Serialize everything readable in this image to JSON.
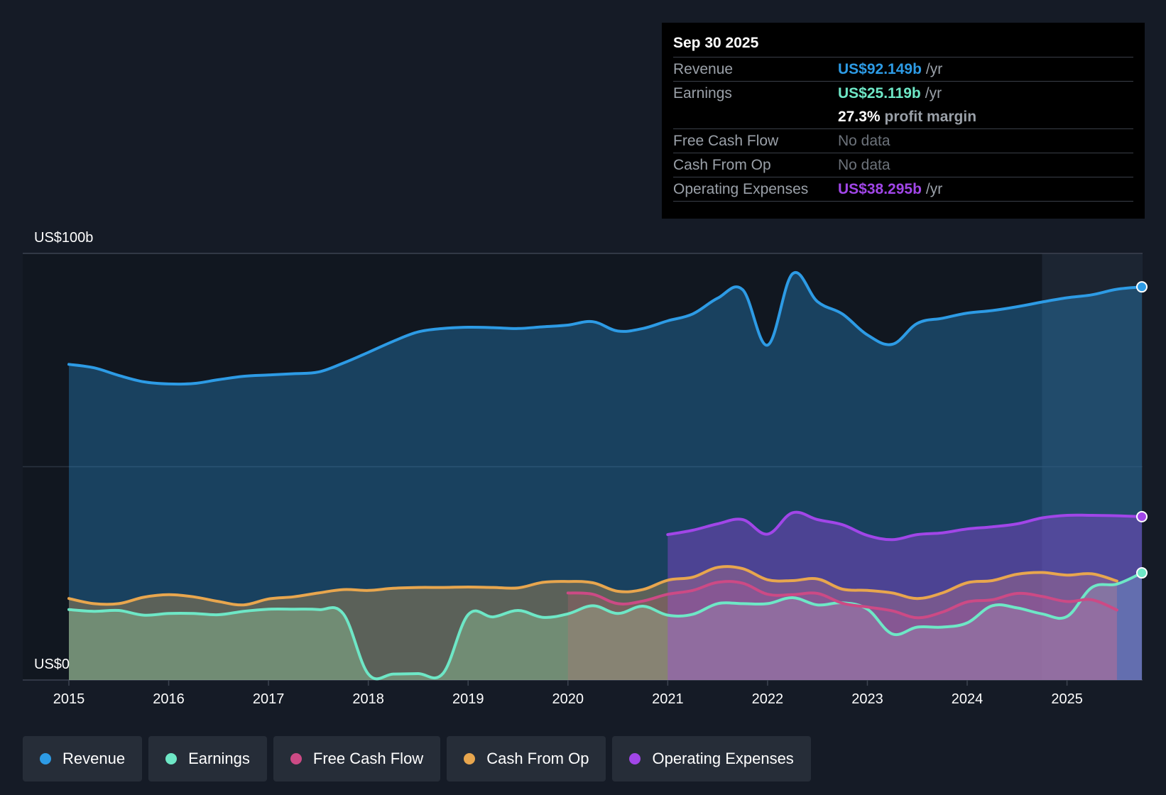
{
  "chart_data": {
    "type": "line",
    "y_axis": {
      "min": 0,
      "max": 100,
      "top_label": "US$100b",
      "bottom_label": "US$0",
      "unit": "US$ billions"
    },
    "x_axis": {
      "min": 2015.0,
      "max": 2025.75,
      "tick_labels": [
        "2015",
        "2016",
        "2017",
        "2018",
        "2019",
        "2020",
        "2021",
        "2022",
        "2023",
        "2024",
        "2025"
      ]
    },
    "highlight_start": 2024.75,
    "series": [
      {
        "name": "Revenue",
        "color": "#2d9be5",
        "end_marker": true,
        "points": [
          [
            2015.0,
            74.0
          ],
          [
            2015.25,
            73.2
          ],
          [
            2015.5,
            71.4
          ],
          [
            2015.75,
            69.9
          ],
          [
            2016.0,
            69.4
          ],
          [
            2016.25,
            69.5
          ],
          [
            2016.5,
            70.4
          ],
          [
            2016.75,
            71.2
          ],
          [
            2017.0,
            71.5
          ],
          [
            2017.25,
            71.8
          ],
          [
            2017.5,
            72.2
          ],
          [
            2017.75,
            74.3
          ],
          [
            2018.0,
            76.8
          ],
          [
            2018.25,
            79.4
          ],
          [
            2018.5,
            81.6
          ],
          [
            2018.75,
            82.4
          ],
          [
            2019.0,
            82.7
          ],
          [
            2019.25,
            82.6
          ],
          [
            2019.5,
            82.4
          ],
          [
            2019.75,
            82.8
          ],
          [
            2020.0,
            83.2
          ],
          [
            2020.25,
            84.0
          ],
          [
            2020.5,
            81.8
          ],
          [
            2020.75,
            82.4
          ],
          [
            2021.0,
            84.2
          ],
          [
            2021.25,
            85.8
          ],
          [
            2021.5,
            89.5
          ],
          [
            2021.75,
            91.5
          ],
          [
            2022.0,
            78.5
          ],
          [
            2022.25,
            95.2
          ],
          [
            2022.5,
            88.7
          ],
          [
            2022.75,
            85.8
          ],
          [
            2023.0,
            80.9
          ],
          [
            2023.25,
            78.7
          ],
          [
            2023.5,
            83.6
          ],
          [
            2023.75,
            84.8
          ],
          [
            2024.0,
            86.0
          ],
          [
            2024.25,
            86.6
          ],
          [
            2024.5,
            87.5
          ],
          [
            2024.75,
            88.6
          ],
          [
            2025.0,
            89.6
          ],
          [
            2025.25,
            90.3
          ],
          [
            2025.5,
            91.6
          ],
          [
            2025.75,
            92.149
          ]
        ]
      },
      {
        "name": "Earnings",
        "color": "#6ee7c6",
        "end_marker": true,
        "points": [
          [
            2015.0,
            16.5
          ],
          [
            2015.25,
            16.1
          ],
          [
            2015.5,
            16.3
          ],
          [
            2015.75,
            15.2
          ],
          [
            2016.0,
            15.6
          ],
          [
            2016.25,
            15.6
          ],
          [
            2016.5,
            15.3
          ],
          [
            2016.75,
            16.1
          ],
          [
            2017.0,
            16.6
          ],
          [
            2017.25,
            16.6
          ],
          [
            2017.5,
            16.5
          ],
          [
            2017.75,
            15.5
          ],
          [
            2018.0,
            1.4
          ],
          [
            2018.25,
            1.4
          ],
          [
            2018.5,
            1.5
          ],
          [
            2018.75,
            1.6
          ],
          [
            2019.0,
            15.3
          ],
          [
            2019.25,
            14.8
          ],
          [
            2019.5,
            16.3
          ],
          [
            2019.75,
            14.7
          ],
          [
            2020.0,
            15.5
          ],
          [
            2020.25,
            17.4
          ],
          [
            2020.5,
            15.6
          ],
          [
            2020.75,
            17.3
          ],
          [
            2021.0,
            15.2
          ],
          [
            2021.25,
            15.4
          ],
          [
            2021.5,
            17.9
          ],
          [
            2021.75,
            17.9
          ],
          [
            2022.0,
            17.9
          ],
          [
            2022.25,
            19.3
          ],
          [
            2022.5,
            17.6
          ],
          [
            2022.75,
            18.1
          ],
          [
            2023.0,
            16.6
          ],
          [
            2023.25,
            10.8
          ],
          [
            2023.5,
            12.4
          ],
          [
            2023.75,
            12.4
          ],
          [
            2024.0,
            13.4
          ],
          [
            2024.25,
            17.4
          ],
          [
            2024.5,
            16.9
          ],
          [
            2024.75,
            15.5
          ],
          [
            2025.0,
            14.9
          ],
          [
            2025.25,
            21.7
          ],
          [
            2025.5,
            22.5
          ],
          [
            2025.75,
            25.119
          ]
        ]
      },
      {
        "name": "Free Cash Flow",
        "color": "#cc4a85",
        "end_marker": false,
        "points": [
          [
            2020.0,
            20.4
          ],
          [
            2020.25,
            20.1
          ],
          [
            2020.5,
            17.9
          ],
          [
            2020.75,
            18.5
          ],
          [
            2021.0,
            20.1
          ],
          [
            2021.25,
            21.0
          ],
          [
            2021.5,
            22.9
          ],
          [
            2021.75,
            22.7
          ],
          [
            2022.0,
            20.1
          ],
          [
            2022.25,
            20.0
          ],
          [
            2022.5,
            20.3
          ],
          [
            2022.75,
            18.0
          ],
          [
            2023.0,
            17.1
          ],
          [
            2023.25,
            16.2
          ],
          [
            2023.5,
            14.6
          ],
          [
            2023.75,
            15.9
          ],
          [
            2024.0,
            18.3
          ],
          [
            2024.25,
            18.8
          ],
          [
            2024.5,
            20.3
          ],
          [
            2024.75,
            19.6
          ],
          [
            2025.0,
            18.4
          ],
          [
            2025.25,
            18.8
          ],
          [
            2025.5,
            16.4
          ]
        ]
      },
      {
        "name": "Cash From Op",
        "color": "#e8a64e",
        "end_marker": false,
        "points": [
          [
            2015.0,
            19.1
          ],
          [
            2015.25,
            17.9
          ],
          [
            2015.5,
            17.9
          ],
          [
            2015.75,
            19.4
          ],
          [
            2016.0,
            20.0
          ],
          [
            2016.25,
            19.5
          ],
          [
            2016.5,
            18.4
          ],
          [
            2016.75,
            17.6
          ],
          [
            2017.0,
            19.0
          ],
          [
            2017.25,
            19.5
          ],
          [
            2017.5,
            20.4
          ],
          [
            2017.75,
            21.2
          ],
          [
            2018.0,
            21.0
          ],
          [
            2018.25,
            21.5
          ],
          [
            2018.5,
            21.7
          ],
          [
            2018.75,
            21.7
          ],
          [
            2019.0,
            21.8
          ],
          [
            2019.25,
            21.7
          ],
          [
            2019.5,
            21.6
          ],
          [
            2019.75,
            22.9
          ],
          [
            2020.0,
            23.1
          ],
          [
            2020.25,
            22.8
          ],
          [
            2020.5,
            20.8
          ],
          [
            2020.75,
            21.2
          ],
          [
            2021.0,
            23.4
          ],
          [
            2021.25,
            24.1
          ],
          [
            2021.5,
            26.4
          ],
          [
            2021.75,
            26.1
          ],
          [
            2022.0,
            23.5
          ],
          [
            2022.25,
            23.3
          ],
          [
            2022.5,
            23.7
          ],
          [
            2022.75,
            21.3
          ],
          [
            2023.0,
            21.0
          ],
          [
            2023.25,
            20.4
          ],
          [
            2023.5,
            19.1
          ],
          [
            2023.75,
            20.4
          ],
          [
            2024.0,
            22.8
          ],
          [
            2024.25,
            23.3
          ],
          [
            2024.5,
            24.8
          ],
          [
            2024.75,
            25.2
          ],
          [
            2025.0,
            24.6
          ],
          [
            2025.25,
            24.9
          ],
          [
            2025.5,
            23.2
          ]
        ]
      },
      {
        "name": "Operating Expenses",
        "color": "#a146e8",
        "end_marker": true,
        "points": [
          [
            2021.0,
            34.1
          ],
          [
            2021.25,
            35.1
          ],
          [
            2021.5,
            36.6
          ],
          [
            2021.75,
            37.6
          ],
          [
            2022.0,
            34.2
          ],
          [
            2022.25,
            39.2
          ],
          [
            2022.5,
            37.6
          ],
          [
            2022.75,
            36.4
          ],
          [
            2023.0,
            33.9
          ],
          [
            2023.25,
            32.9
          ],
          [
            2023.5,
            34.1
          ],
          [
            2023.75,
            34.5
          ],
          [
            2024.0,
            35.4
          ],
          [
            2024.25,
            35.9
          ],
          [
            2024.5,
            36.6
          ],
          [
            2024.75,
            38.0
          ],
          [
            2025.0,
            38.6
          ],
          [
            2025.25,
            38.6
          ],
          [
            2025.5,
            38.5
          ],
          [
            2025.75,
            38.295
          ]
        ]
      }
    ]
  },
  "tooltip": {
    "date": "Sep 30 2025",
    "revenue_label": "Revenue",
    "revenue_value": "US$92.149b",
    "unit": "/yr",
    "earnings_label": "Earnings",
    "earnings_value": "US$25.119b",
    "margin_value": "27.3%",
    "margin_label": "profit margin",
    "fcf_label": "Free Cash Flow",
    "fcf_value": "No data",
    "cfo_label": "Cash From Op",
    "cfo_value": "No data",
    "opex_label": "Operating Expenses",
    "opex_value": "US$38.295b",
    "revenue_color": "#2d9be5",
    "earnings_color": "#6ee7c6",
    "opex_color": "#a146e8"
  },
  "legend": [
    {
      "label": "Revenue",
      "color": "#2d9be5"
    },
    {
      "label": "Earnings",
      "color": "#6ee7c6"
    },
    {
      "label": "Free Cash Flow",
      "color": "#cc4a85"
    },
    {
      "label": "Cash From Op",
      "color": "#e8a64e"
    },
    {
      "label": "Operating Expenses",
      "color": "#a146e8"
    }
  ]
}
